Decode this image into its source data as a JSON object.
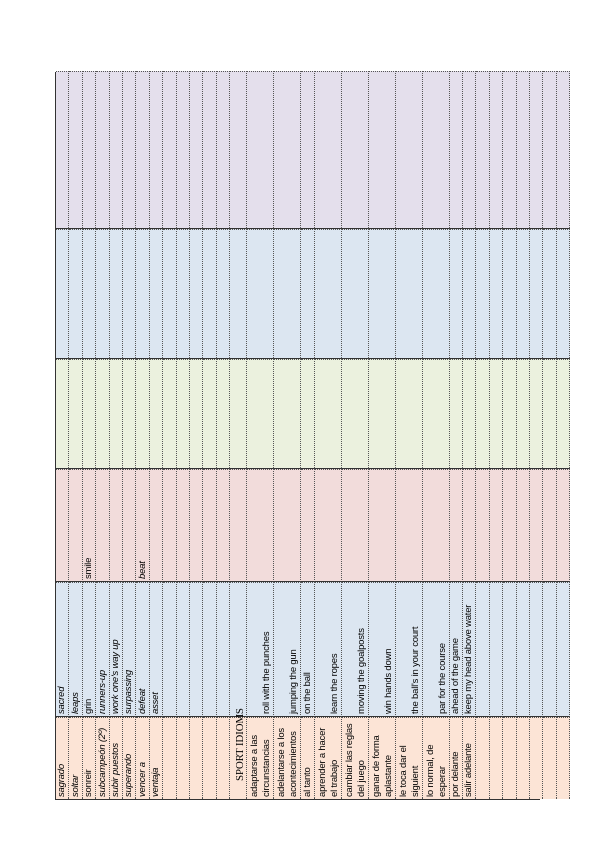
{
  "vocabulary": {
    "rows": [
      [
        "sagrado",
        "sacred"
      ],
      [
        "soltar",
        "leaps"
      ],
      [
        "sonreir",
        "grin",
        "smile"
      ],
      [
        "subcampeón (2º)",
        "runners-up"
      ],
      [
        "subir puestos",
        "work one's way up"
      ],
      [
        "superando",
        "surpassing"
      ],
      [
        "vencer a",
        "defeat",
        "beat"
      ],
      [
        "ventaja",
        "asset"
      ]
    ]
  },
  "idioms": {
    "title": "SPORT IDIOMS",
    "rows": [
      [
        "adaptarse a las circunstancias",
        "roll with the punches"
      ],
      [
        "adelantarse a los acontecimientos",
        "jumping the gun"
      ],
      [
        "al tanto",
        "on the ball"
      ],
      [
        "aprender a hacer el trabajo",
        "learn the ropes"
      ],
      [
        "cambiar las reglas del juego",
        "moving the goalposts"
      ],
      [
        "ganar de forma aplastante",
        "win hands down"
      ],
      [
        "le toca dar el siguient",
        "the ball's in your court"
      ],
      [
        "lo normal, de esperar",
        "par for the course"
      ],
      [
        "por delante",
        "ahead of the game"
      ],
      [
        "salir adelante",
        "keep my head above water"
      ]
    ]
  }
}
